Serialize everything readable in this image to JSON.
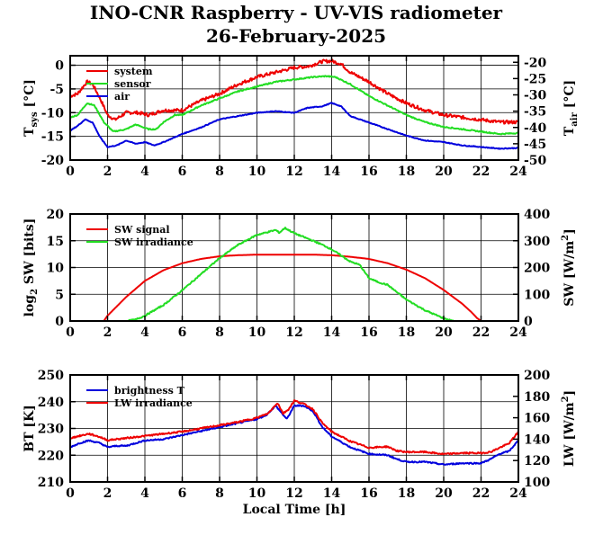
{
  "title_line1": "INO-CNR Raspberry - UV-VIS radiometer",
  "title_line2": "26-February-2025",
  "chart_data": [
    {
      "type": "line",
      "panel": "temperature",
      "ylabel_main": "T",
      "ylabel_sub": "sys",
      "ylabel_unit": " [°C]",
      "y2label_main": "T",
      "y2label_sub": "air",
      "y2label_unit": " [°C]",
      "xlim": [
        0,
        24
      ],
      "ylim": [
        -20,
        2
      ],
      "y2lim": [
        -50,
        -18
      ],
      "xticks": [
        0,
        2,
        4,
        6,
        8,
        10,
        12,
        14,
        16,
        18,
        20,
        22,
        24
      ],
      "yticks": [
        -20,
        -15,
        -10,
        -5,
        0
      ],
      "y2ticks": [
        -50,
        -45,
        -40,
        -35,
        -30,
        -25,
        -20
      ],
      "grid": true,
      "legend_position": "top-left",
      "series": [
        {
          "name": "system",
          "color": "#ee0000",
          "axis": "left",
          "noise": 0.35,
          "x": [
            0,
            0.4,
            0.9,
            1.2,
            1.6,
            2.0,
            2.4,
            3.0,
            3.6,
            4.2,
            5.0,
            5.6,
            6.0,
            7.0,
            8.0,
            9.0,
            10.0,
            11.0,
            12.0,
            12.8,
            13.5,
            14.0,
            14.5,
            15.0,
            16.0,
            17.0,
            18.0,
            19.0,
            20.0,
            21.0,
            22.0,
            23.0,
            24.0
          ],
          "y": [
            -6.5,
            -6.0,
            -3.5,
            -4.0,
            -7.0,
            -10.5,
            -11.5,
            -10.0,
            -10.0,
            -10.5,
            -9.5,
            -9.5,
            -9.5,
            -7.5,
            -6.0,
            -4.0,
            -2.5,
            -1.5,
            -0.5,
            -0.2,
            0.8,
            0.9,
            0.3,
            -1.5,
            -3.5,
            -6.0,
            -8.0,
            -9.5,
            -10.5,
            -11.0,
            -11.5,
            -12.0,
            -12.0
          ]
        },
        {
          "name": "sensor",
          "color": "#22dd22",
          "axis": "left",
          "noise": 0.12,
          "x": [
            0,
            0.4,
            0.9,
            1.3,
            1.8,
            2.3,
            3.0,
            3.5,
            4.2,
            4.6,
            5.0,
            5.6,
            6.0,
            7.0,
            8.0,
            9.0,
            10.0,
            11.0,
            12.0,
            13.0,
            13.7,
            14.2,
            15.0,
            16.0,
            17.0,
            18.0,
            19.0,
            20.0,
            21.0,
            22.0,
            23.0,
            24.0
          ],
          "y": [
            -11.0,
            -10.5,
            -8.0,
            -8.5,
            -12.0,
            -14.0,
            -13.5,
            -12.5,
            -13.5,
            -13.5,
            -12.0,
            -10.5,
            -10.5,
            -8.5,
            -7.0,
            -5.5,
            -4.5,
            -3.5,
            -3.0,
            -2.5,
            -2.3,
            -2.5,
            -4.0,
            -6.5,
            -8.5,
            -10.5,
            -12.0,
            -13.0,
            -13.5,
            -14.0,
            -14.5,
            -14.3
          ]
        },
        {
          "name": "air",
          "color": "#0000dd",
          "axis": "right",
          "noise": 0.12,
          "x": [
            0,
            0.4,
            0.8,
            1.2,
            1.6,
            2.0,
            2.5,
            3.0,
            3.5,
            4.0,
            4.5,
            5.0,
            6.0,
            7.0,
            8.0,
            9.0,
            10.0,
            11.0,
            12.0,
            12.7,
            13.5,
            14.0,
            14.5,
            15.0,
            16.0,
            17.0,
            18.0,
            19.0,
            20.0,
            21.0,
            22.0,
            23.0,
            24.0
          ],
          "y": [
            -41.0,
            -39.5,
            -37.5,
            -38.5,
            -43.0,
            -46.0,
            -45.5,
            -44.0,
            -45.0,
            -44.5,
            -45.5,
            -44.5,
            -42.0,
            -40.0,
            -37.5,
            -36.5,
            -35.5,
            -35.0,
            -35.5,
            -34.0,
            -33.5,
            -32.5,
            -33.5,
            -36.5,
            -38.5,
            -40.5,
            -42.5,
            -44.0,
            -44.5,
            -45.5,
            -46.0,
            -46.5,
            -46.3
          ]
        }
      ]
    },
    {
      "type": "line",
      "panel": "shortwave",
      "ylabel_main": "log",
      "ylabel_sub": "2",
      "ylabel_unit": " SW [bits]",
      "y2label_main": "SW [W/m",
      "y2label_sup": "2",
      "y2label_unit": "]",
      "xlim": [
        0,
        24
      ],
      "ylim": [
        0,
        20
      ],
      "y2lim": [
        0,
        400
      ],
      "xticks": [
        0,
        2,
        4,
        6,
        8,
        10,
        12,
        14,
        16,
        18,
        20,
        22,
        24
      ],
      "yticks": [
        0,
        5,
        10,
        15,
        20
      ],
      "y2ticks": [
        0,
        100,
        200,
        300,
        400
      ],
      "grid": true,
      "legend_position": "top-left",
      "series": [
        {
          "name": "SW signal",
          "color": "#ee0000",
          "axis": "left",
          "noise": 0,
          "x": [
            0,
            1.8,
            2.0,
            3.0,
            4.0,
            5.0,
            6.0,
            7.0,
            8.0,
            9.0,
            10.0,
            11.0,
            12.0,
            13.0,
            14.0,
            15.0,
            16.0,
            17.0,
            18.0,
            19.0,
            20.0,
            21.0,
            21.5,
            21.8,
            22.0,
            24.0
          ],
          "y": [
            0,
            0,
            1.0,
            4.5,
            7.5,
            9.5,
            10.8,
            11.6,
            12.1,
            12.3,
            12.4,
            12.4,
            12.4,
            12.4,
            12.3,
            12.0,
            11.6,
            10.8,
            9.6,
            8.0,
            5.8,
            3.2,
            1.6,
            0.5,
            0,
            0
          ]
        },
        {
          "name": "SW irradiance",
          "color": "#22dd22",
          "axis": "right",
          "noise": 2.5,
          "x": [
            0,
            3.0,
            3.5,
            4.0,
            5.0,
            6.0,
            7.0,
            8.0,
            9.0,
            10.0,
            11.0,
            11.2,
            11.5,
            12.0,
            13.0,
            13.5,
            14.0,
            15.0,
            15.5,
            16.0,
            16.5,
            17.0,
            18.0,
            19.0,
            20.0,
            20.5,
            24.0
          ],
          "y": [
            0,
            0,
            5,
            20,
            60,
            115,
            175,
            235,
            285,
            322,
            340,
            330,
            348,
            328,
            300,
            285,
            268,
            222,
            210,
            160,
            145,
            135,
            80,
            40,
            10,
            0,
            0
          ]
        }
      ]
    },
    {
      "type": "line",
      "panel": "longwave",
      "ylabel_main": "BT [K]",
      "y2label_main": "LW [W/m",
      "y2label_sup": "2",
      "y2label_unit": "]",
      "xlabel": "Local Time [h]",
      "xlim": [
        0,
        24
      ],
      "ylim": [
        210,
        250
      ],
      "y2lim": [
        100,
        200
      ],
      "xticks": [
        0,
        2,
        4,
        6,
        8,
        10,
        12,
        14,
        16,
        18,
        20,
        22,
        24
      ],
      "yticks": [
        210,
        220,
        230,
        240,
        250
      ],
      "y2ticks": [
        100,
        120,
        140,
        160,
        180,
        200
      ],
      "grid": true,
      "legend_position": "top-left",
      "series": [
        {
          "name": "brightness T",
          "color": "#0000dd",
          "axis": "left",
          "noise": 0.25,
          "x": [
            0,
            0.5,
            1.0,
            1.6,
            2.0,
            2.5,
            3.0,
            4.0,
            5.0,
            6.0,
            7.0,
            8.0,
            9.0,
            10.0,
            10.5,
            11.0,
            11.3,
            11.6,
            12.0,
            12.5,
            13.0,
            13.5,
            14.0,
            15.0,
            16.0,
            17.0,
            17.5,
            18.0,
            19.0,
            20.0,
            21.0,
            22.0,
            22.5,
            23.0,
            23.5,
            24.0
          ],
          "y": [
            223.0,
            224.5,
            225.5,
            224.5,
            223.0,
            223.5,
            223.5,
            225.5,
            226.0,
            227.5,
            229.0,
            230.5,
            232.0,
            233.5,
            235.0,
            238.5,
            236.0,
            233.5,
            238.5,
            238.5,
            236.5,
            230.5,
            227.0,
            223.0,
            220.5,
            220.0,
            218.5,
            217.5,
            217.5,
            216.5,
            217.0,
            217.0,
            218.5,
            220.5,
            221.5,
            225.5
          ]
        },
        {
          "name": "LW irradiance",
          "color": "#ee0000",
          "axis": "right",
          "noise": 0.7,
          "x": [
            0,
            0.5,
            1.0,
            1.6,
            2.0,
            2.5,
            3.0,
            4.0,
            5.0,
            6.0,
            7.0,
            8.0,
            9.0,
            10.0,
            10.6,
            11.1,
            11.4,
            11.7,
            12.0,
            12.5,
            13.0,
            13.5,
            14.0,
            15.0,
            16.0,
            17.0,
            17.5,
            18.0,
            19.0,
            20.0,
            21.0,
            22.0,
            22.5,
            23.0,
            23.5,
            24.0
          ],
          "y": [
            141,
            143,
            145,
            142,
            139,
            140,
            141,
            143,
            145,
            147,
            150,
            153,
            156,
            160,
            164,
            174,
            164,
            168,
            176,
            173,
            168,
            155,
            147,
            138,
            132,
            133,
            129,
            128,
            128,
            126,
            127,
            127,
            128,
            132,
            136,
            147
          ]
        }
      ]
    }
  ]
}
